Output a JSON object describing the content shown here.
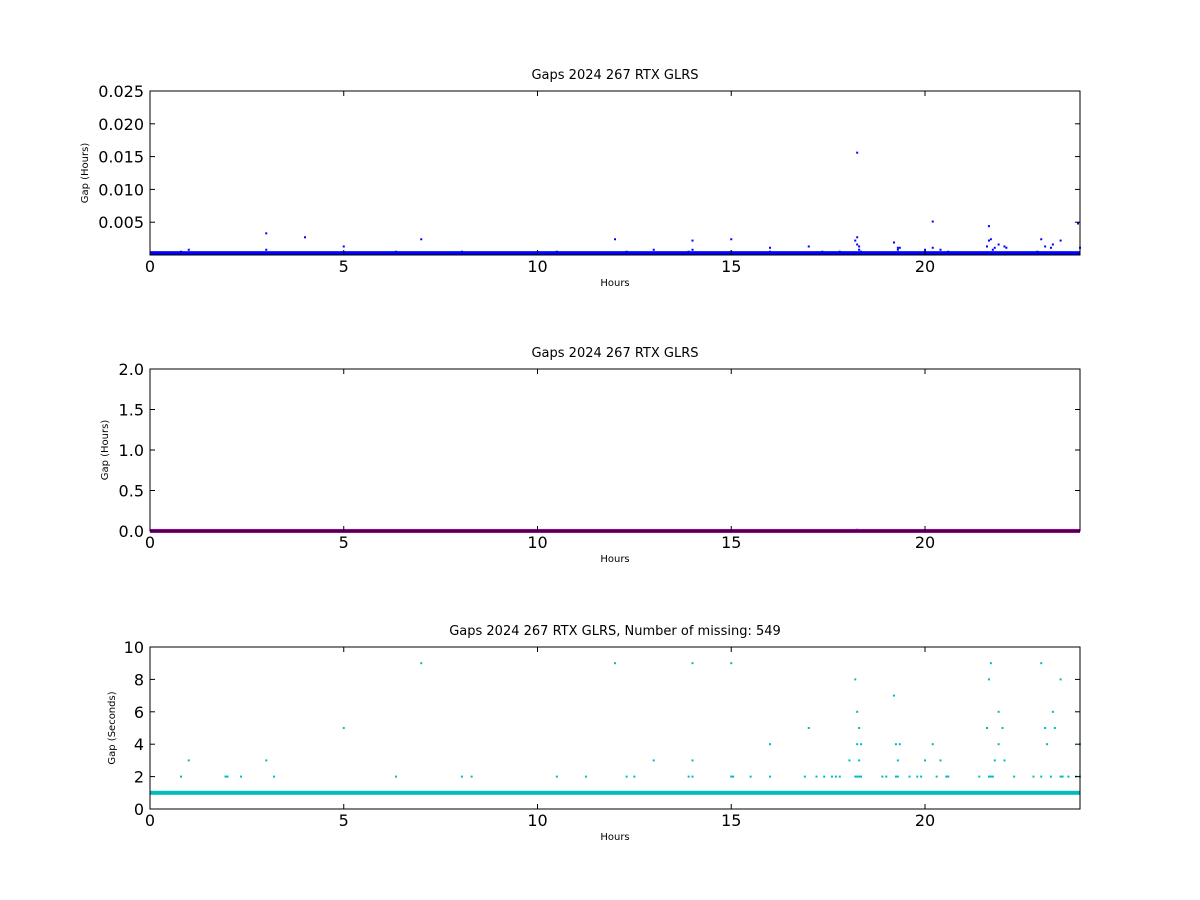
{
  "chart_data": [
    {
      "type": "scatter",
      "title": "Gaps 2024 267 RTX  GLRS",
      "xlabel": "Hours",
      "ylabel": "Gap (Hours)",
      "xlim": [
        0,
        24
      ],
      "ylim": [
        0,
        0.025
      ],
      "xticks": [
        0,
        5,
        10,
        15,
        20
      ],
      "xtick_labels": [
        "0",
        "5",
        "10",
        "15",
        "20"
      ],
      "yticks": [
        0.005,
        0.01,
        0.015,
        0.02,
        0.025
      ],
      "ytick_labels": [
        "0.005",
        "0.010",
        "0.015",
        "0.020",
        "0.025"
      ],
      "grid": false,
      "color": "#0000ff",
      "baseline": {
        "x_range": [
          0,
          24
        ],
        "y": 0.00028
      },
      "x": [
        0.8,
        1.0,
        3.0,
        3.0,
        4.0,
        5.0,
        6.35,
        7.0,
        8.05,
        10.5,
        12.0,
        12.3,
        13.0,
        13.9,
        14.0,
        14.0,
        15.0,
        15.0,
        16.0,
        16.0,
        17.0,
        17.35,
        17.8,
        18.2,
        18.25,
        18.25,
        18.25,
        18.3,
        18.3,
        18.35,
        19.2,
        19.3,
        19.3,
        19.35,
        20.0,
        20.2,
        20.2,
        20.4,
        20.6,
        21.6,
        21.65,
        21.65,
        21.7,
        21.75,
        21.8,
        21.9,
        22.05,
        22.1,
        22.9,
        23.0,
        23.1,
        23.25,
        23.3,
        23.5,
        23.95,
        24.0
      ],
      "y": [
        0.0005,
        0.0008,
        0.0033,
        0.0008,
        0.0027,
        0.0013,
        0.0005,
        0.0024,
        0.0005,
        0.0005,
        0.0024,
        0.0005,
        0.0008,
        0.0005,
        0.0022,
        0.0008,
        0.0024,
        0.0005,
        0.0011,
        0.0005,
        0.0013,
        0.0005,
        0.0005,
        0.0022,
        0.0156,
        0.0027,
        0.0016,
        0.0013,
        0.0008,
        0.0005,
        0.0019,
        0.0011,
        0.0008,
        0.0011,
        0.0008,
        0.0051,
        0.0011,
        0.0008,
        0.0005,
        0.0013,
        0.0022,
        0.0044,
        0.0024,
        0.0008,
        0.0011,
        0.0016,
        0.0013,
        0.0011,
        0.0005,
        0.0024,
        0.0013,
        0.0011,
        0.0016,
        0.0022,
        0.0048,
        0.0011
      ]
    },
    {
      "type": "scatter",
      "title": "Gaps 2024 267 RTX  GLRS",
      "xlabel": "Hours",
      "ylabel": "Gap (Hours)",
      "xlim": [
        0,
        24
      ],
      "ylim": [
        0,
        2.0
      ],
      "xticks": [
        0,
        5,
        10,
        15,
        20
      ],
      "xtick_labels": [
        "0",
        "5",
        "10",
        "15",
        "20"
      ],
      "yticks": [
        0.0,
        0.5,
        1.0,
        1.5,
        2.0
      ],
      "ytick_labels": [
        "0.0",
        "0.5",
        "1.0",
        "1.5",
        "2.0"
      ],
      "grid": false,
      "color": "#990099",
      "baseline": {
        "x_range": [
          0,
          24
        ],
        "y": 0.0003
      },
      "x": [
        18.25
      ],
      "y": [
        0.0156
      ]
    },
    {
      "type": "scatter",
      "title": "Gaps 2024 267 RTX  GLRS, Number of missing: 549",
      "xlabel": "Hours",
      "ylabel": "Gap (Seconds)",
      "xlim": [
        0,
        24
      ],
      "ylim": [
        0,
        10
      ],
      "xticks": [
        0,
        5,
        10,
        15,
        20
      ],
      "xtick_labels": [
        "0",
        "5",
        "10",
        "15",
        "20"
      ],
      "yticks": [
        0,
        2,
        4,
        6,
        8,
        10
      ],
      "ytick_labels": [
        "0",
        "2",
        "4",
        "6",
        "8",
        "10"
      ],
      "grid": false,
      "color": "#00bbbb",
      "baseline": {
        "x_range": [
          0,
          24
        ],
        "y": 1
      },
      "x": [
        0.8,
        1.0,
        1.95,
        2.0,
        2.35,
        3.0,
        3.2,
        5.0,
        6.35,
        7.0,
        8.05,
        8.3,
        10.5,
        11.25,
        12.0,
        12.3,
        12.5,
        13.0,
        13.9,
        14.0,
        14.0,
        14.0,
        15.0,
        15.0,
        15.05,
        15.5,
        16.0,
        16.0,
        16.9,
        17.0,
        17.2,
        17.4,
        17.6,
        17.7,
        17.8,
        18.05,
        18.2,
        18.2,
        18.25,
        18.25,
        18.25,
        18.3,
        18.3,
        18.3,
        18.35,
        18.35,
        18.9,
        19.0,
        19.2,
        19.25,
        19.25,
        19.3,
        19.3,
        19.35,
        19.6,
        19.8,
        19.9,
        20.0,
        20.2,
        20.3,
        20.4,
        20.55,
        20.6,
        21.4,
        21.6,
        21.65,
        21.65,
        21.7,
        21.7,
        21.75,
        21.8,
        21.9,
        21.9,
        22.0,
        22.05,
        22.3,
        22.8,
        23.0,
        23.0,
        23.1,
        23.15,
        23.25,
        23.3,
        23.35,
        23.5,
        23.5,
        23.55,
        23.7,
        23.9,
        24.0,
        24.0
      ],
      "y": [
        2,
        3,
        2,
        2,
        2,
        3,
        2,
        5,
        2,
        9,
        2,
        2,
        2,
        2,
        9,
        2,
        2,
        3,
        2,
        2,
        3,
        9,
        9,
        2,
        2,
        2,
        4,
        2,
        2,
        5,
        2,
        2,
        2,
        2,
        2,
        3,
        2,
        8,
        4,
        6,
        2,
        5,
        3,
        2,
        2,
        4,
        2,
        2,
        7,
        2,
        4,
        3,
        2,
        4,
        2,
        2,
        2,
        3,
        4,
        2,
        3,
        2,
        2,
        2,
        5,
        2,
        8,
        9,
        2,
        2,
        3,
        6,
        4,
        5,
        3,
        2,
        2,
        2,
        9,
        5,
        4,
        2,
        6,
        5,
        2,
        8,
        2,
        2,
        2,
        4,
        2
      ]
    }
  ]
}
